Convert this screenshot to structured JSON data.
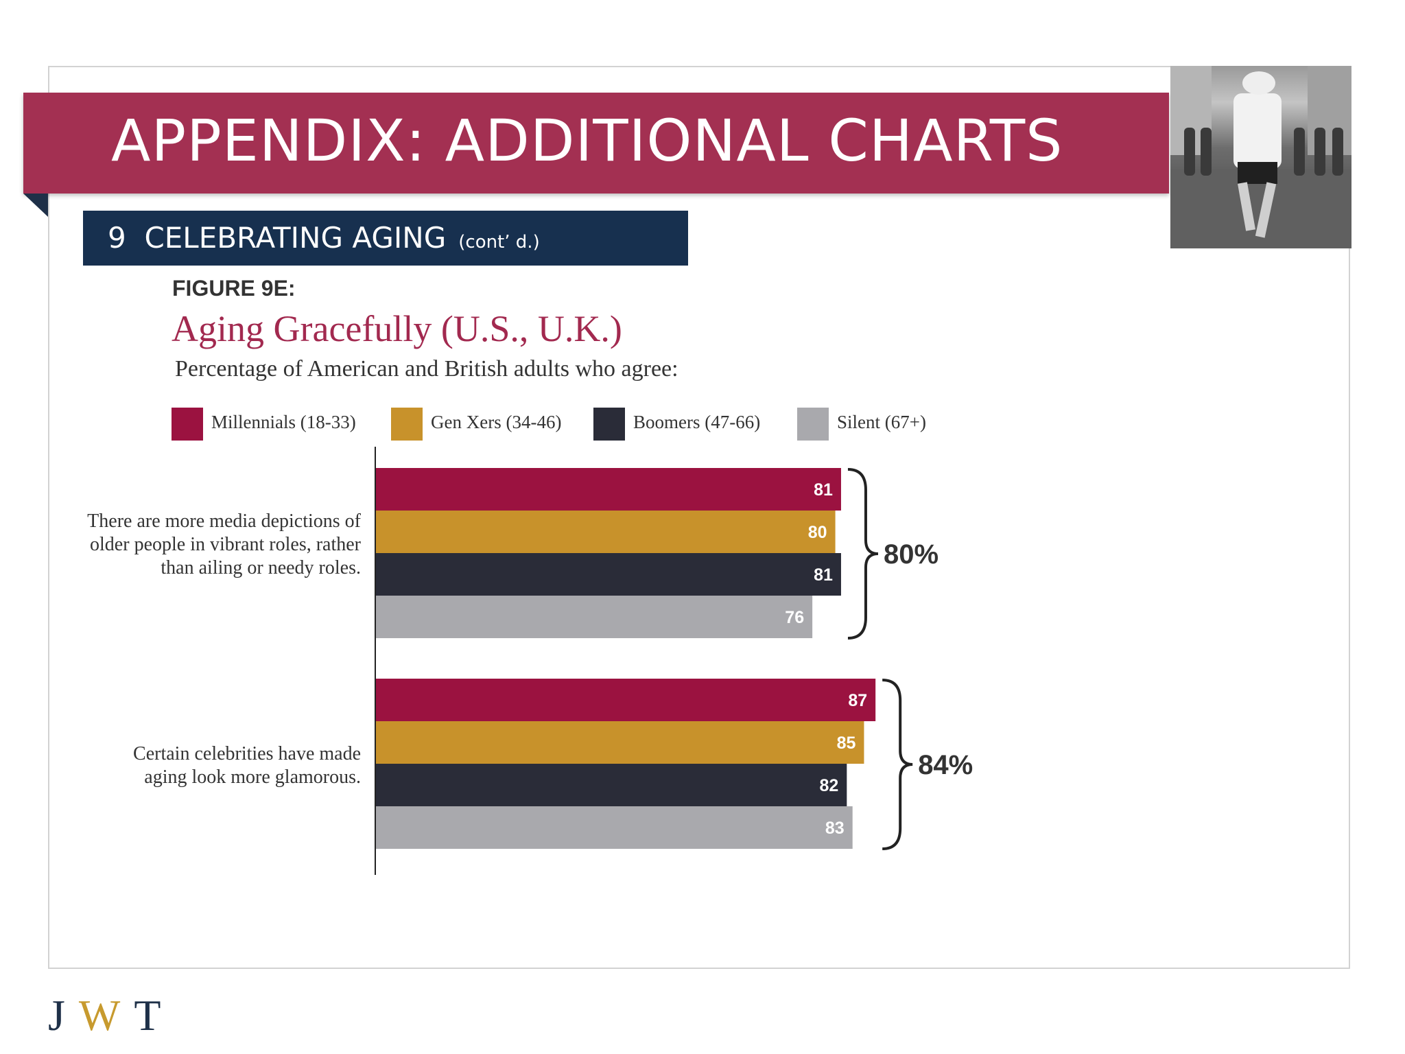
{
  "header": {
    "title": "APPENDIX: ADDITIONAL CHARTS",
    "section_number": "9",
    "section_title": "CELEBRATING AGING",
    "section_sub": "(cont’ d.)"
  },
  "figure": {
    "label": "FIGURE 9E:",
    "title": "Aging Gracefully (U.S., U.K.)",
    "subtitle": "Percentage of American and British adults who agree:"
  },
  "chart_data": {
    "type": "bar",
    "orientation": "horizontal",
    "title": "Aging Gracefully (U.S., U.K.)",
    "subtitle": "Percentage of American and British adults who agree:",
    "categories": [
      "There are more media depictions of older people in vibrant roles, rather than ailing or needy roles.",
      "Certain celebrities have made aging look more glamorous."
    ],
    "series": [
      {
        "name": "Millennials (18-33)",
        "color": "#9b1240",
        "values": [
          81,
          87
        ]
      },
      {
        "name": "Gen Xers (34-46)",
        "color": "#c8922b",
        "values": [
          80,
          85
        ]
      },
      {
        "name": "Boomers (47-66)",
        "color": "#2a2c38",
        "values": [
          81,
          82
        ]
      },
      {
        "name": "Silent (67+)",
        "color": "#a9a9ad",
        "values": [
          76,
          83
        ]
      }
    ],
    "group_totals": [
      "80%",
      "84%"
    ],
    "xlim": [
      0,
      100
    ],
    "grid": false,
    "legend_position": "top"
  },
  "footer": {
    "logo": {
      "j": "J",
      "w": "W",
      "t": "T"
    }
  },
  "icons": {
    "photo": "marathon-runner-photo"
  }
}
